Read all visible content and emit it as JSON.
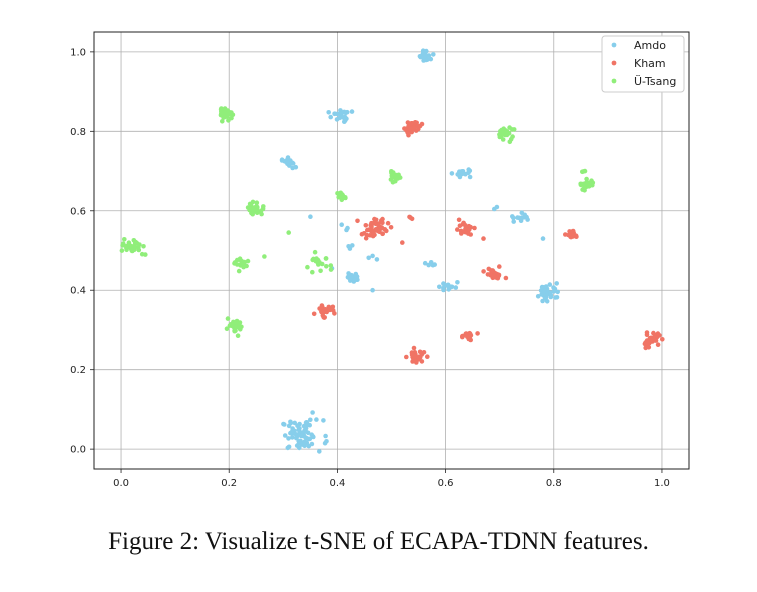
{
  "caption": "Figure 2: Visualize t-SNE of ECAPA-TDNN features.",
  "chart_data": {
    "type": "scatter",
    "title": "",
    "xlabel": "",
    "ylabel": "",
    "xlim": [
      -0.05,
      1.05
    ],
    "ylim": [
      -0.05,
      1.05
    ],
    "xticks": [
      "0.0",
      "0.2",
      "0.4",
      "0.6",
      "0.8",
      "1.0"
    ],
    "yticks": [
      "0.0",
      "0.2",
      "0.4",
      "0.6",
      "0.8",
      "1.0"
    ],
    "grid": true,
    "legend_position": "top-right",
    "series": [
      {
        "name": "Amdo",
        "color": "#87ceeb",
        "clusters": [
          {
            "x": 0.335,
            "y": 0.035,
            "spread": 0.035,
            "n": 70
          },
          {
            "x": 0.31,
            "y": 0.72,
            "spread": 0.012,
            "n": 18
          },
          {
            "x": 0.405,
            "y": 0.84,
            "spread": 0.015,
            "n": 25
          },
          {
            "x": 0.565,
            "y": 0.99,
            "spread": 0.012,
            "n": 20
          },
          {
            "x": 0.635,
            "y": 0.695,
            "spread": 0.013,
            "n": 15
          },
          {
            "x": 0.79,
            "y": 0.395,
            "spread": 0.02,
            "n": 35
          },
          {
            "x": 0.43,
            "y": 0.435,
            "spread": 0.012,
            "n": 15
          },
          {
            "x": 0.605,
            "y": 0.41,
            "spread": 0.015,
            "n": 15
          },
          {
            "x": 0.735,
            "y": 0.58,
            "spread": 0.015,
            "n": 12
          },
          {
            "x": 0.57,
            "y": 0.47,
            "spread": 0.01,
            "n": 5
          },
          {
            "x": 0.41,
            "y": 0.56,
            "spread": 0.008,
            "n": 3
          },
          {
            "x": 0.42,
            "y": 0.51,
            "spread": 0.008,
            "n": 3
          },
          {
            "x": 0.46,
            "y": 0.48,
            "spread": 0.01,
            "n": 3
          },
          {
            "x": 0.465,
            "y": 0.4,
            "spread": 0.004,
            "n": 1
          },
          {
            "x": 0.35,
            "y": 0.585,
            "spread": 0.004,
            "n": 1
          },
          {
            "x": 0.39,
            "y": 0.455,
            "spread": 0.004,
            "n": 1
          },
          {
            "x": 0.78,
            "y": 0.53,
            "spread": 0.004,
            "n": 1
          },
          {
            "x": 0.69,
            "y": 0.61,
            "spread": 0.006,
            "n": 2
          }
        ]
      },
      {
        "name": "Kham",
        "color": "#f07465",
        "clusters": [
          {
            "x": 0.54,
            "y": 0.81,
            "spread": 0.015,
            "n": 30
          },
          {
            "x": 0.47,
            "y": 0.555,
            "spread": 0.022,
            "n": 45
          },
          {
            "x": 0.635,
            "y": 0.555,
            "spread": 0.015,
            "n": 25
          },
          {
            "x": 0.69,
            "y": 0.44,
            "spread": 0.015,
            "n": 25
          },
          {
            "x": 0.835,
            "y": 0.54,
            "spread": 0.01,
            "n": 15
          },
          {
            "x": 0.375,
            "y": 0.35,
            "spread": 0.013,
            "n": 25
          },
          {
            "x": 0.64,
            "y": 0.285,
            "spread": 0.012,
            "n": 22
          },
          {
            "x": 0.545,
            "y": 0.23,
            "spread": 0.015,
            "n": 28
          },
          {
            "x": 0.98,
            "y": 0.275,
            "spread": 0.015,
            "n": 40
          },
          {
            "x": 0.535,
            "y": 0.58,
            "spread": 0.006,
            "n": 3
          },
          {
            "x": 0.52,
            "y": 0.52,
            "spread": 0.004,
            "n": 1
          },
          {
            "x": 0.67,
            "y": 0.53,
            "spread": 0.004,
            "n": 1
          }
        ]
      },
      {
        "name": "Ü-Tsang",
        "color": "#90ee7a",
        "clusters": [
          {
            "x": 0.02,
            "y": 0.51,
            "spread": 0.015,
            "n": 30
          },
          {
            "x": 0.195,
            "y": 0.845,
            "spread": 0.012,
            "n": 30
          },
          {
            "x": 0.25,
            "y": 0.605,
            "spread": 0.015,
            "n": 30
          },
          {
            "x": 0.225,
            "y": 0.465,
            "spread": 0.012,
            "n": 18
          },
          {
            "x": 0.21,
            "y": 0.305,
            "spread": 0.015,
            "n": 28
          },
          {
            "x": 0.365,
            "y": 0.465,
            "spread": 0.02,
            "n": 18
          },
          {
            "x": 0.405,
            "y": 0.635,
            "spread": 0.01,
            "n": 12
          },
          {
            "x": 0.505,
            "y": 0.685,
            "spread": 0.01,
            "n": 15
          },
          {
            "x": 0.71,
            "y": 0.795,
            "spread": 0.015,
            "n": 25
          },
          {
            "x": 0.86,
            "y": 0.665,
            "spread": 0.013,
            "n": 25
          },
          {
            "x": 0.855,
            "y": 0.7,
            "spread": 0.006,
            "n": 3
          },
          {
            "x": 0.265,
            "y": 0.485,
            "spread": 0.004,
            "n": 1
          },
          {
            "x": 0.31,
            "y": 0.545,
            "spread": 0.004,
            "n": 1
          },
          {
            "x": 0.045,
            "y": 0.49,
            "spread": 0.005,
            "n": 2
          }
        ]
      }
    ]
  }
}
